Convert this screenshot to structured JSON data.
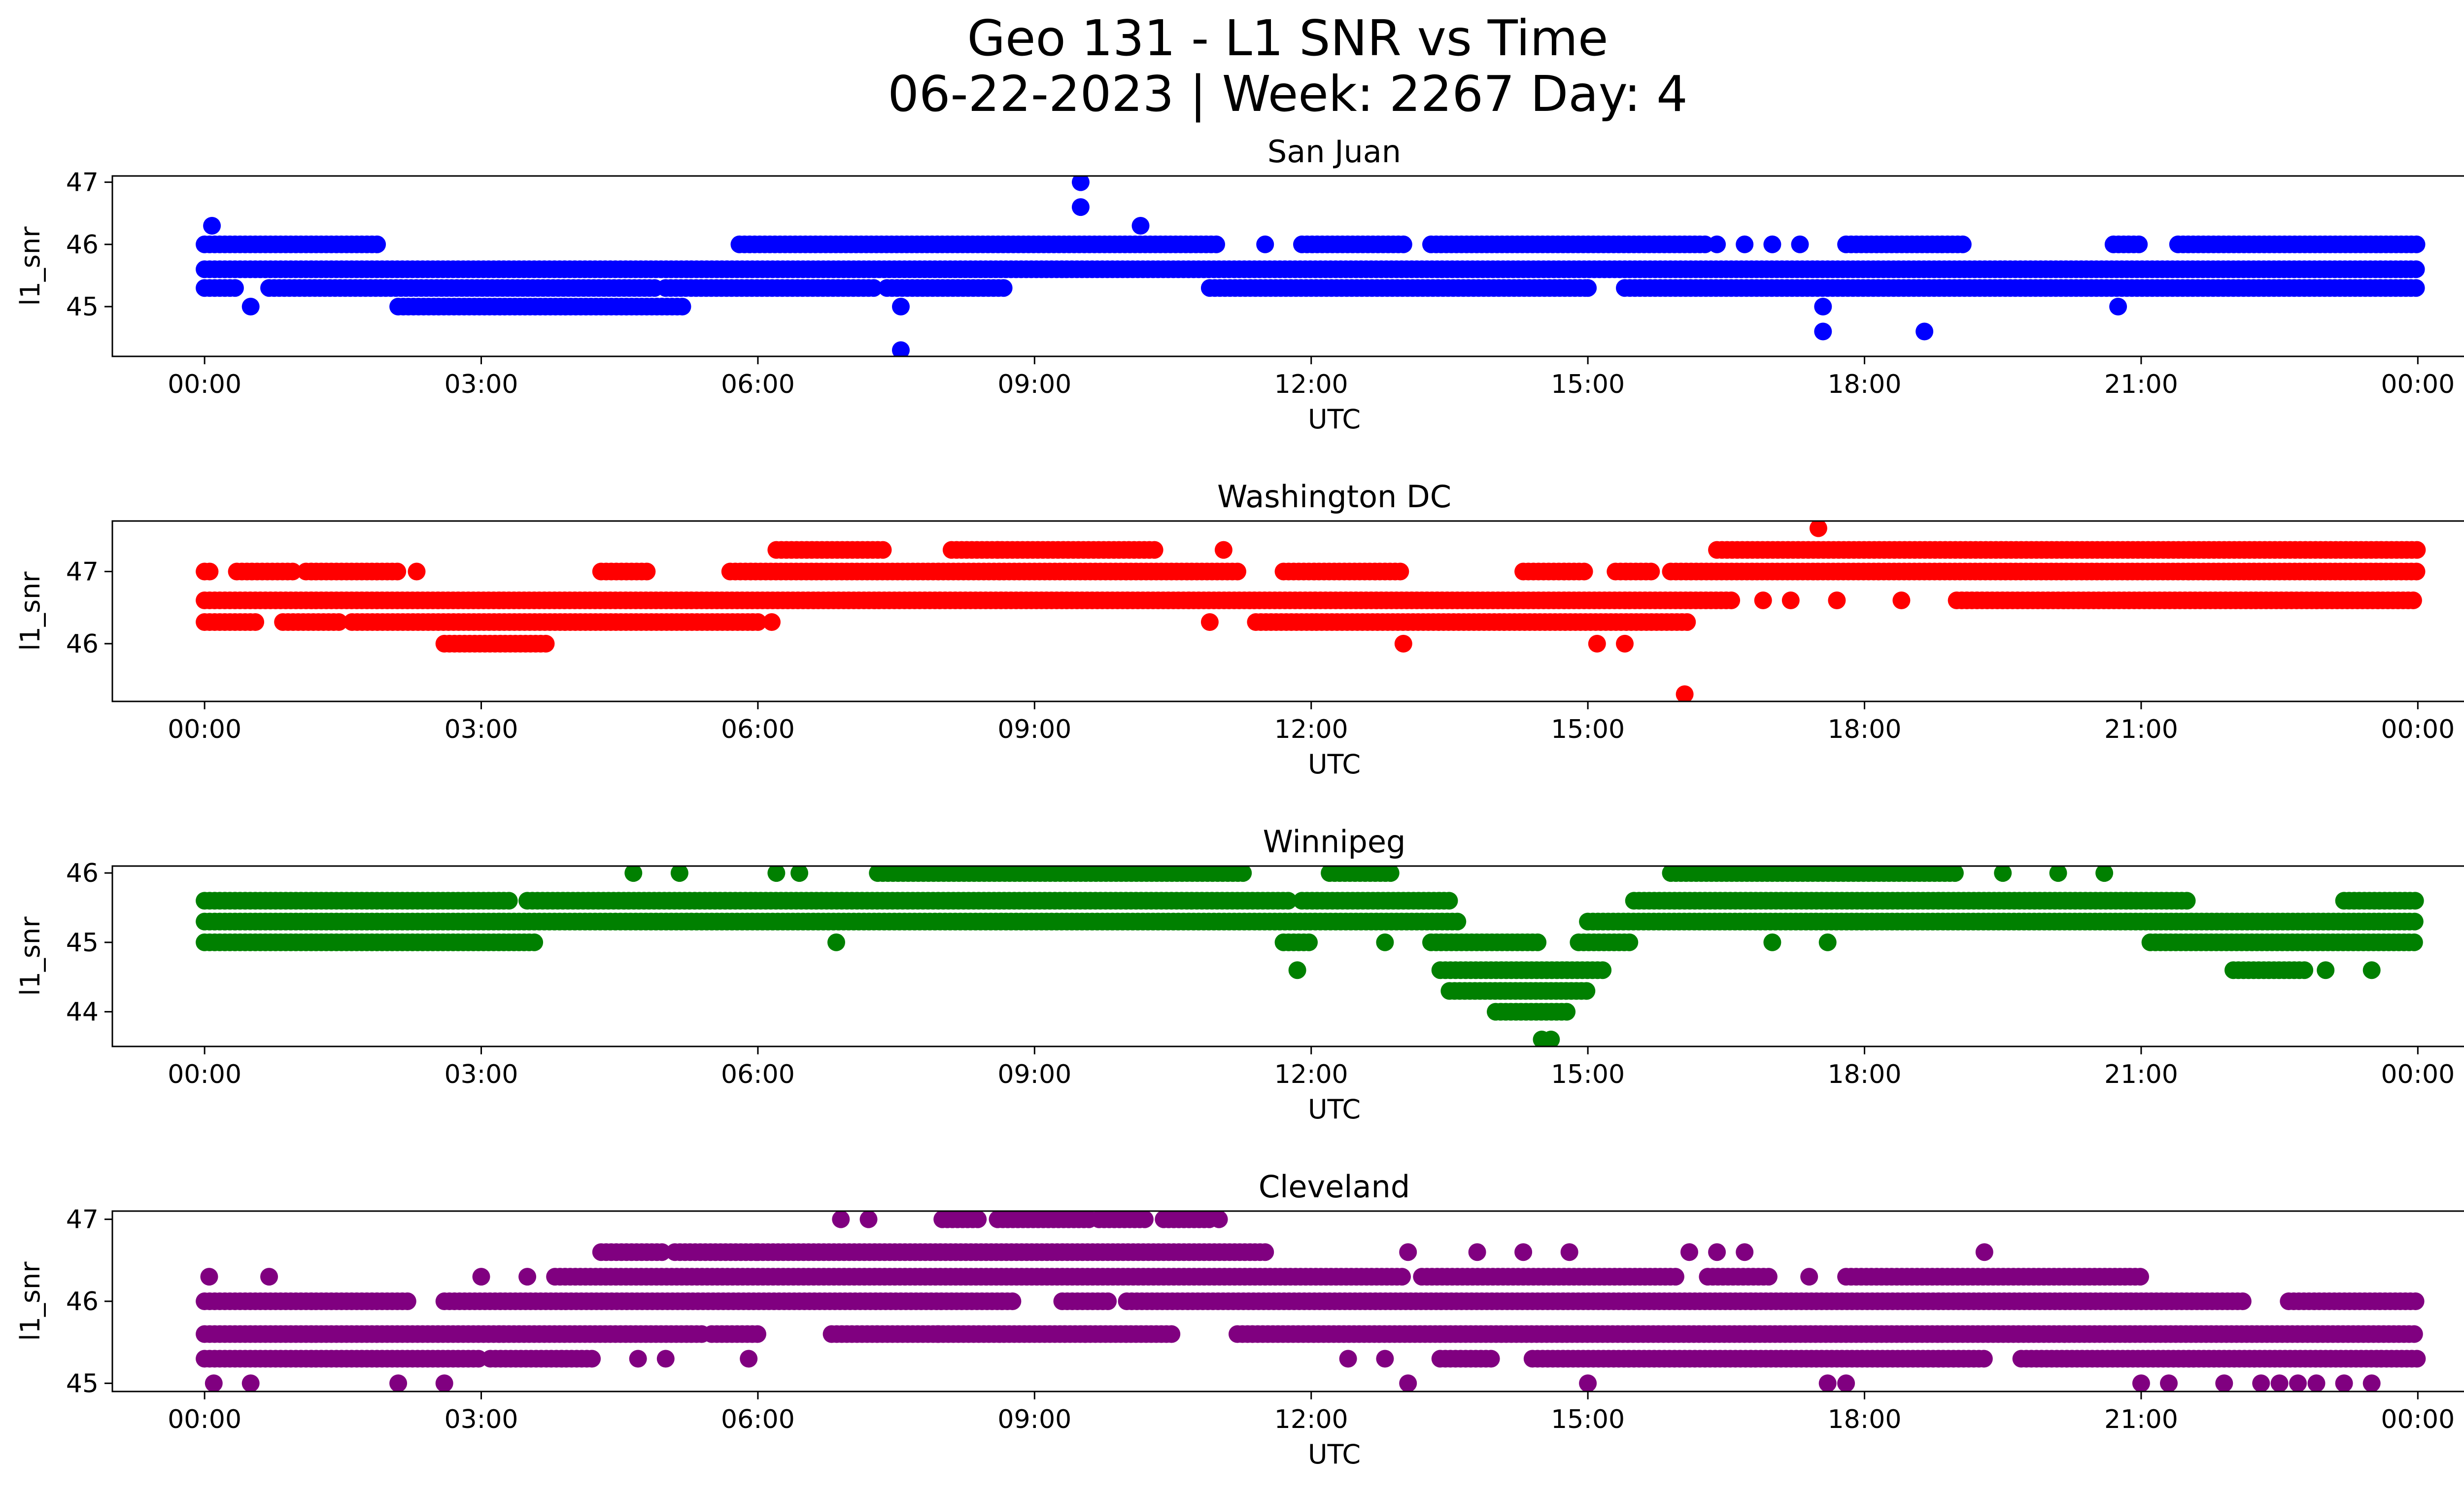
{
  "figure": {
    "title_line1": "Geo 131 - L1 SNR vs Time",
    "title_line2": "06-22-2023 | Week: 2267 Day: 4"
  },
  "chart_data": [
    {
      "type": "scatter",
      "title": "San Juan",
      "xlabel": "UTC",
      "ylabel": "l1_snr",
      "color": "#0000ff",
      "xlim_hours": [
        -1.0,
        25.5
      ],
      "ylim": [
        44.2,
        47.1
      ],
      "x_ticks": [
        "00:00",
        "03:00",
        "06:00",
        "09:00",
        "12:00",
        "15:00",
        "18:00",
        "21:00",
        "00:00"
      ],
      "y_ticks": [
        45,
        46,
        47
      ],
      "bands": [
        {
          "y": 45.6,
          "segments": [
            [
              0.0,
              24.0
            ]
          ]
        },
        {
          "y": 45.3,
          "segments": [
            [
              0.0,
              0.35
            ],
            [
              0.7,
              4.9
            ],
            [
              5.0,
              7.3
            ],
            [
              7.4,
              8.7
            ],
            [
              10.9,
              15.0
            ],
            [
              15.4,
              24.0
            ]
          ]
        },
        {
          "y": 46.0,
          "segments": [
            [
              0.0,
              1.9
            ],
            [
              5.8,
              11.0
            ],
            [
              11.9,
              13.0
            ],
            [
              13.3,
              16.3
            ],
            [
              17.8,
              19.1
            ],
            [
              20.7,
              21.0
            ],
            [
              21.4,
              24.0
            ]
          ]
        },
        {
          "y": 45.0,
          "segments": [
            [
              2.1,
              5.2
            ]
          ]
        }
      ],
      "points": [
        {
          "x": 0.08,
          "y": 46.3
        },
        {
          "x": 0.5,
          "y": 45.0
        },
        {
          "x": 7.55,
          "y": 45.0
        },
        {
          "x": 7.55,
          "y": 44.3
        },
        {
          "x": 9.5,
          "y": 47.0
        },
        {
          "x": 9.5,
          "y": 46.6
        },
        {
          "x": 10.15,
          "y": 46.3
        },
        {
          "x": 11.5,
          "y": 46.0
        },
        {
          "x": 15.0,
          "y": 45.3
        },
        {
          "x": 16.4,
          "y": 46.0
        },
        {
          "x": 16.7,
          "y": 46.0
        },
        {
          "x": 17.0,
          "y": 46.0
        },
        {
          "x": 17.3,
          "y": 46.0
        },
        {
          "x": 17.55,
          "y": 45.0
        },
        {
          "x": 17.55,
          "y": 44.6
        },
        {
          "x": 18.65,
          "y": 44.6
        },
        {
          "x": 20.75,
          "y": 45.0
        }
      ]
    },
    {
      "type": "scatter",
      "title": "Washington DC",
      "xlabel": "UTC",
      "ylabel": "l1_snr",
      "color": "#ff0000",
      "xlim_hours": [
        -1.0,
        25.5
      ],
      "ylim": [
        45.2,
        47.7
      ],
      "x_ticks": [
        "00:00",
        "03:00",
        "06:00",
        "09:00",
        "12:00",
        "15:00",
        "18:00",
        "21:00",
        "00:00"
      ],
      "y_ticks": [
        46,
        47
      ],
      "bands": [
        {
          "y": 46.6,
          "segments": [
            [
              0.0,
              16.6
            ],
            [
              19.0,
              24.0
            ]
          ]
        },
        {
          "y": 46.3,
          "segments": [
            [
              0.0,
              0.6
            ],
            [
              0.85,
              1.5
            ],
            [
              1.6,
              6.0
            ],
            [
              11.4,
              16.1
            ]
          ]
        },
        {
          "y": 47.0,
          "segments": [
            [
              0.0,
              0.1
            ],
            [
              0.35,
              1.0
            ],
            [
              1.1,
              2.1
            ],
            [
              4.3,
              4.8
            ],
            [
              5.7,
              11.2
            ],
            [
              11.7,
              13.0
            ],
            [
              14.3,
              15.0
            ],
            [
              15.3,
              15.7
            ],
            [
              15.9,
              24.0
            ]
          ]
        },
        {
          "y": 47.3,
          "segments": [
            [
              6.2,
              7.4
            ],
            [
              8.1,
              10.3
            ],
            [
              16.4,
              24.0
            ]
          ]
        },
        {
          "y": 46.0,
          "segments": [
            [
              2.6,
              3.7
            ]
          ]
        }
      ],
      "points": [
        {
          "x": 2.3,
          "y": 47.0
        },
        {
          "x": 6.15,
          "y": 46.3
        },
        {
          "x": 8.6,
          "y": 47.3
        },
        {
          "x": 10.9,
          "y": 46.3
        },
        {
          "x": 11.05,
          "y": 47.3
        },
        {
          "x": 13.0,
          "y": 46.0
        },
        {
          "x": 15.1,
          "y": 46.0
        },
        {
          "x": 15.4,
          "y": 46.0
        },
        {
          "x": 16.05,
          "y": 45.3
        },
        {
          "x": 17.5,
          "y": 47.6
        },
        {
          "x": 18.4,
          "y": 46.6
        },
        {
          "x": 16.9,
          "y": 46.6
        },
        {
          "x": 17.2,
          "y": 46.6
        },
        {
          "x": 17.7,
          "y": 46.6
        }
      ]
    },
    {
      "type": "scatter",
      "title": "Winnipeg",
      "xlabel": "UTC",
      "ylabel": "l1_snr",
      "color": "#008000",
      "xlim_hours": [
        -1.0,
        25.5
      ],
      "ylim": [
        43.5,
        46.1
      ],
      "x_ticks": [
        "00:00",
        "03:00",
        "06:00",
        "09:00",
        "12:00",
        "15:00",
        "18:00",
        "21:00",
        "00:00"
      ],
      "y_ticks": [
        44,
        45,
        46
      ],
      "bands": [
        {
          "y": 45.3,
          "segments": [
            [
              0.0,
              13.6
            ],
            [
              15.0,
              24.0
            ]
          ]
        },
        {
          "y": 45.6,
          "segments": [
            [
              0.0,
              3.3
            ],
            [
              3.5,
              11.8
            ],
            [
              11.9,
              13.5
            ],
            [
              15.5,
              21.5
            ],
            [
              23.2,
              24.0
            ]
          ]
        },
        {
          "y": 45.0,
          "segments": [
            [
              0.0,
              3.6
            ],
            [
              11.7,
              12.0
            ],
            [
              13.3,
              14.5
            ],
            [
              14.9,
              15.5
            ],
            [
              21.1,
              24.0
            ]
          ]
        },
        {
          "y": 46.0,
          "segments": [
            [
              7.3,
              11.3
            ],
            [
              12.2,
              12.9
            ],
            [
              15.9,
              19.0
            ]
          ]
        },
        {
          "y": 44.6,
          "segments": [
            [
              13.4,
              15.2
            ],
            [
              22.0,
              22.8
            ]
          ]
        },
        {
          "y": 44.3,
          "segments": [
            [
              13.5,
              15.0
            ]
          ]
        },
        {
          "y": 44.0,
          "segments": [
            [
              14.0,
              14.8
            ]
          ]
        }
      ],
      "points": [
        {
          "x": 4.65,
          "y": 46.0
        },
        {
          "x": 5.15,
          "y": 46.0
        },
        {
          "x": 6.2,
          "y": 46.0
        },
        {
          "x": 6.45,
          "y": 46.0
        },
        {
          "x": 6.85,
          "y": 45.0
        },
        {
          "x": 11.85,
          "y": 44.6
        },
        {
          "x": 12.8,
          "y": 45.0
        },
        {
          "x": 14.5,
          "y": 43.6
        },
        {
          "x": 14.6,
          "y": 43.6
        },
        {
          "x": 17.0,
          "y": 45.0
        },
        {
          "x": 17.6,
          "y": 45.0
        },
        {
          "x": 19.5,
          "y": 46.0
        },
        {
          "x": 20.1,
          "y": 46.0
        },
        {
          "x": 20.6,
          "y": 46.0
        },
        {
          "x": 23.0,
          "y": 44.6
        },
        {
          "x": 23.5,
          "y": 44.6
        }
      ]
    },
    {
      "type": "scatter",
      "title": "Cleveland",
      "xlabel": "UTC",
      "ylabel": "l1_snr",
      "color": "#800080",
      "xlim_hours": [
        -1.0,
        25.5
      ],
      "ylim": [
        44.9,
        47.1
      ],
      "x_ticks": [
        "00:00",
        "03:00",
        "06:00",
        "09:00",
        "12:00",
        "15:00",
        "18:00",
        "21:00",
        "00:00"
      ],
      "y_ticks": [
        45,
        46,
        47
      ],
      "bands": [
        {
          "y": 45.6,
          "segments": [
            [
              0.0,
              5.4
            ],
            [
              5.5,
              6.0
            ],
            [
              6.8,
              10.5
            ],
            [
              11.2,
              24.0
            ]
          ]
        },
        {
          "y": 46.0,
          "segments": [
            [
              0.0,
              2.2
            ],
            [
              2.6,
              8.8
            ],
            [
              9.3,
              9.8
            ],
            [
              10.0,
              22.1
            ],
            [
              22.6,
              24.0
            ]
          ]
        },
        {
          "y": 45.3,
          "segments": [
            [
              0.0,
              3.0
            ],
            [
              3.1,
              4.2
            ],
            [
              13.4,
              14.0
            ],
            [
              14.4,
              19.3
            ],
            [
              19.7,
              24.0
            ]
          ]
        },
        {
          "y": 46.3,
          "segments": [
            [
              3.8,
              13.0
            ],
            [
              13.2,
              16.0
            ],
            [
              16.3,
              17.0
            ],
            [
              17.8,
              21.0
            ]
          ]
        },
        {
          "y": 46.6,
          "segments": [
            [
              4.3,
              5.0
            ],
            [
              5.1,
              6.0
            ],
            [
              6.0,
              11.5
            ]
          ]
        },
        {
          "y": 47.0,
          "segments": [
            [
              8.0,
              8.4
            ],
            [
              8.6,
              9.6
            ],
            [
              9.7,
              10.2
            ],
            [
              10.4,
              10.9
            ]
          ]
        }
      ],
      "points": [
        {
          "x": 0.05,
          "y": 46.3
        },
        {
          "x": 0.7,
          "y": 46.3
        },
        {
          "x": 3.0,
          "y": 46.3
        },
        {
          "x": 3.5,
          "y": 46.3
        },
        {
          "x": 0.1,
          "y": 45.0
        },
        {
          "x": 0.5,
          "y": 45.0
        },
        {
          "x": 2.1,
          "y": 45.0
        },
        {
          "x": 2.6,
          "y": 45.0
        },
        {
          "x": 4.7,
          "y": 45.3
        },
        {
          "x": 5.0,
          "y": 45.3
        },
        {
          "x": 5.9,
          "y": 45.3
        },
        {
          "x": 6.9,
          "y": 47.0
        },
        {
          "x": 7.2,
          "y": 47.0
        },
        {
          "x": 7.95,
          "y": 45.6
        },
        {
          "x": 9.55,
          "y": 45.6
        },
        {
          "x": 11.0,
          "y": 47.0
        },
        {
          "x": 12.4,
          "y": 45.3
        },
        {
          "x": 12.8,
          "y": 45.3
        },
        {
          "x": 13.05,
          "y": 45.0
        },
        {
          "x": 13.05,
          "y": 46.6
        },
        {
          "x": 13.8,
          "y": 46.6
        },
        {
          "x": 14.3,
          "y": 46.6
        },
        {
          "x": 14.8,
          "y": 46.6
        },
        {
          "x": 15.0,
          "y": 45.0
        },
        {
          "x": 16.1,
          "y": 46.6
        },
        {
          "x": 16.4,
          "y": 46.6
        },
        {
          "x": 16.7,
          "y": 46.6
        },
        {
          "x": 17.4,
          "y": 46.3
        },
        {
          "x": 17.6,
          "y": 45.0
        },
        {
          "x": 17.8,
          "y": 45.0
        },
        {
          "x": 19.3,
          "y": 46.6
        },
        {
          "x": 21.0,
          "y": 45.0
        },
        {
          "x": 21.3,
          "y": 45.0
        },
        {
          "x": 21.9,
          "y": 45.0
        },
        {
          "x": 22.3,
          "y": 45.0
        },
        {
          "x": 22.5,
          "y": 45.0
        },
        {
          "x": 22.7,
          "y": 45.0
        },
        {
          "x": 22.9,
          "y": 45.0
        },
        {
          "x": 23.2,
          "y": 45.0
        },
        {
          "x": 23.5,
          "y": 45.0
        }
      ]
    }
  ]
}
